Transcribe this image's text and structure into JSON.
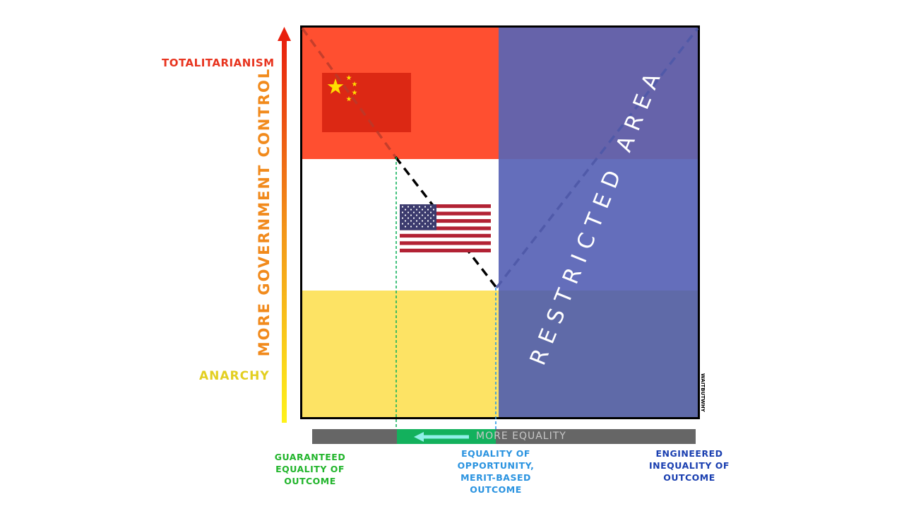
{
  "vertical_axis": {
    "top_label": "TOTALITARIANISM",
    "bottom_label": "ANARCHY",
    "axis_label": "MORE GOVERNMENT CONTROL"
  },
  "horizontal_axis": {
    "axis_label": "MORE EQUALITY",
    "left_label": "GUARANTEED EQUALITY OF OUTCOME",
    "middle_label": "EQUALITY OF OPPORTUNITY, MERIT-BASED OUTCOME",
    "right_label": "ENGINEERED INEQUALITY OF OUTCOME"
  },
  "regions": {
    "restricted_label": "RESTRICTED AREA"
  },
  "flags": [
    "china-flag",
    "usa-flag"
  ],
  "watermark": "WAITBUTWHY",
  "colors": {
    "totalitarian_red": "#ff4f30",
    "anarchy_yellow": "#fde364",
    "restricted_blue": "#646ebb",
    "outcome_green": "#13b15d",
    "opportunity_blue": "#2a93e0",
    "engineered_blue": "#1a3fb0"
  }
}
